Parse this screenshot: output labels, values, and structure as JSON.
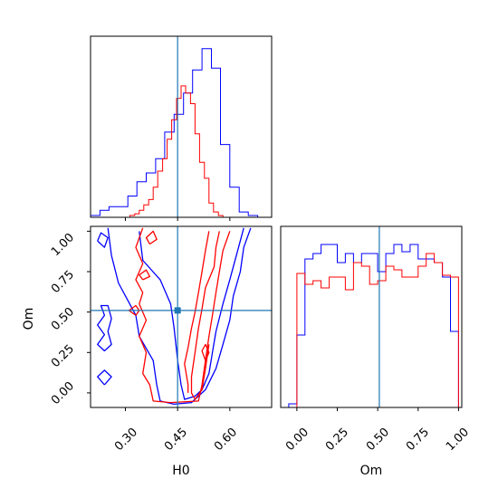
{
  "chart_data": {
    "type": "corner",
    "parameters": [
      "H0",
      "Om"
    ],
    "truth": {
      "H0": 0.45,
      "Om": 0.51,
      "color": "#1f77b4"
    },
    "series_colors": {
      "blue": "#0000ff",
      "red": "#ff0000"
    },
    "panels": [
      {
        "id": "h0-hist",
        "type": "histogram",
        "parameter": "H0",
        "xlim": [
          0.2,
          0.72
        ],
        "ylim": [
          0,
          1.02
        ],
        "series": [
          {
            "color_key": "blue",
            "bin_edges": [
              0.2,
              0.227,
              0.253,
              0.28,
              0.307,
              0.333,
              0.36,
              0.387,
              0.413,
              0.44,
              0.467,
              0.493,
              0.52,
              0.547,
              0.573,
              0.6,
              0.627,
              0.653,
              0.68,
              0.707
            ],
            "values": [
              0.01,
              0.04,
              0.06,
              0.06,
              0.12,
              0.2,
              0.25,
              0.33,
              0.48,
              0.58,
              0.7,
              0.83,
              0.95,
              0.84,
              0.41,
              0.17,
              0.03,
              0.01,
              0.0
            ]
          },
          {
            "color_key": "red",
            "bin_edges": [
              0.3,
              0.313,
              0.327,
              0.34,
              0.353,
              0.367,
              0.38,
              0.393,
              0.407,
              0.42,
              0.433,
              0.447,
              0.46,
              0.473,
              0.487,
              0.5,
              0.513,
              0.527,
              0.54,
              0.553,
              0.567,
              0.58,
              0.593
            ],
            "values": [
              0.0,
              0.01,
              0.02,
              0.04,
              0.07,
              0.1,
              0.17,
              0.26,
              0.33,
              0.44,
              0.55,
              0.67,
              0.74,
              0.7,
              0.64,
              0.47,
              0.31,
              0.22,
              0.08,
              0.03,
              0.01,
              0.0
            ]
          }
        ]
      },
      {
        "id": "om-vs-h0",
        "type": "contour",
        "x_param": "H0",
        "y_param": "Om",
        "xlim": [
          0.2,
          0.72
        ],
        "ylim": [
          -0.09,
          1.03
        ],
        "xticks": [
          0.3,
          0.45,
          0.6
        ],
        "xtick_labels": [
          "0.30",
          "0.45",
          "0.60"
        ],
        "yticks": [
          0.0,
          0.25,
          0.5,
          0.75,
          1.0
        ],
        "ytick_labels": [
          "0.00",
          "0.25",
          "0.50",
          "0.75",
          "1.00"
        ],
        "xlabel": "H0",
        "ylabel": "Om",
        "contours": [
          {
            "color_key": "blue",
            "points": [
              [
                0.66,
                1.02
              ],
              [
                0.64,
                0.9
              ],
              [
                0.63,
                0.75
              ],
              [
                0.61,
                0.6
              ],
              [
                0.6,
                0.45
              ],
              [
                0.58,
                0.3
              ],
              [
                0.56,
                0.15
              ],
              [
                0.53,
                0.02
              ],
              [
                0.49,
                -0.06
              ],
              [
                0.44,
                -0.07
              ],
              [
                0.4,
                -0.05
              ],
              [
                0.39,
                0.05
              ],
              [
                0.38,
                0.2
              ],
              [
                0.34,
                0.35
              ],
              [
                0.33,
                0.48
              ],
              [
                0.3,
                0.6
              ],
              [
                0.28,
                0.68
              ],
              [
                0.26,
                0.85
              ],
              [
                0.25,
                1.02
              ]
            ]
          },
          {
            "color_key": "blue",
            "points": [
              [
                0.64,
                1.02
              ],
              [
                0.62,
                0.86
              ],
              [
                0.6,
                0.7
              ],
              [
                0.58,
                0.55
              ],
              [
                0.56,
                0.38
              ],
              [
                0.55,
                0.25
              ],
              [
                0.54,
                0.12
              ],
              [
                0.52,
                0.02
              ],
              [
                0.5,
                -0.02
              ],
              [
                0.47,
                -0.04
              ],
              [
                0.46,
                0.05
              ],
              [
                0.45,
                0.2
              ],
              [
                0.44,
                0.4
              ],
              [
                0.43,
                0.55
              ],
              [
                0.4,
                0.7
              ],
              [
                0.35,
                0.82
              ],
              [
                0.34,
                1.0
              ]
            ]
          },
          {
            "color_key": "blue",
            "points": [
              [
                0.24,
                0.26
              ],
              [
                0.22,
                0.3
              ],
              [
                0.24,
                0.36
              ],
              [
                0.22,
                0.42
              ],
              [
                0.24,
                0.48
              ],
              [
                0.23,
                0.54
              ],
              [
                0.25,
                0.54
              ],
              [
                0.26,
                0.46
              ],
              [
                0.25,
                0.38
              ],
              [
                0.26,
                0.3
              ],
              [
                0.24,
                0.26
              ]
            ]
          },
          {
            "color_key": "blue",
            "points": [
              [
                0.22,
                0.94
              ],
              [
                0.24,
                0.9
              ],
              [
                0.25,
                0.96
              ],
              [
                0.23,
                0.99
              ],
              [
                0.22,
                0.94
              ]
            ]
          },
          {
            "color_key": "blue",
            "points": [
              [
                0.24,
                0.05
              ],
              [
                0.22,
                0.1
              ],
              [
                0.24,
                0.14
              ],
              [
                0.26,
                0.1
              ],
              [
                0.24,
                0.05
              ]
            ]
          },
          {
            "color_key": "red",
            "points": [
              [
                0.6,
                1.0
              ],
              [
                0.58,
                0.88
              ],
              [
                0.57,
                0.75
              ],
              [
                0.56,
                0.62
              ],
              [
                0.55,
                0.48
              ],
              [
                0.54,
                0.35
              ],
              [
                0.53,
                0.2
              ],
              [
                0.52,
                0.05
              ],
              [
                0.51,
                -0.05
              ],
              [
                0.43,
                -0.06
              ],
              [
                0.38,
                -0.05
              ],
              [
                0.37,
                0.05
              ],
              [
                0.35,
                0.12
              ],
              [
                0.36,
                0.25
              ],
              [
                0.34,
                0.35
              ],
              [
                0.36,
                0.45
              ],
              [
                0.34,
                0.55
              ],
              [
                0.35,
                0.62
              ],
              [
                0.33,
                0.7
              ],
              [
                0.35,
                0.8
              ],
              [
                0.33,
                0.9
              ],
              [
                0.35,
                1.02
              ]
            ]
          },
          {
            "color_key": "red",
            "points": [
              [
                0.57,
                1.0
              ],
              [
                0.56,
                0.9
              ],
              [
                0.555,
                0.78
              ],
              [
                0.53,
                0.65
              ],
              [
                0.52,
                0.52
              ],
              [
                0.51,
                0.4
              ],
              [
                0.5,
                0.25
              ],
              [
                0.49,
                0.1
              ],
              [
                0.49,
                0.0
              ],
              [
                0.5,
                -0.04
              ],
              [
                0.52,
                0.02
              ],
              [
                0.53,
                0.15
              ],
              [
                0.54,
                0.3
              ]
            ]
          },
          {
            "color_key": "red",
            "points": [
              [
                0.54,
                1.0
              ],
              [
                0.53,
                0.88
              ],
              [
                0.52,
                0.75
              ],
              [
                0.51,
                0.62
              ],
              [
                0.5,
                0.5
              ],
              [
                0.49,
                0.4
              ],
              [
                0.48,
                0.28
              ],
              [
                0.47,
                0.18
              ],
              [
                0.48,
                0.05
              ],
              [
                0.48,
                0.0
              ]
            ]
          },
          {
            "color_key": "red",
            "points": [
              [
                0.37,
                0.92
              ],
              [
                0.36,
                0.96
              ],
              [
                0.38,
                1.0
              ],
              [
                0.39,
                0.95
              ],
              [
                0.37,
                0.92
              ]
            ]
          },
          {
            "color_key": "red",
            "points": [
              [
                0.35,
                0.7
              ],
              [
                0.34,
                0.73
              ],
              [
                0.36,
                0.76
              ],
              [
                0.37,
                0.72
              ],
              [
                0.35,
                0.7
              ]
            ]
          },
          {
            "color_key": "red",
            "points": [
              [
                0.33,
                0.48
              ],
              [
                0.31,
                0.51
              ],
              [
                0.33,
                0.54
              ],
              [
                0.34,
                0.51
              ],
              [
                0.33,
                0.48
              ]
            ]
          },
          {
            "color_key": "red",
            "points": [
              [
                0.53,
                0.2
              ],
              [
                0.52,
                0.26
              ],
              [
                0.53,
                0.3
              ],
              [
                0.54,
                0.25
              ],
              [
                0.53,
                0.2
              ]
            ]
          }
        ]
      },
      {
        "id": "om-hist",
        "type": "histogram",
        "parameter": "Om",
        "xlim": [
          -0.1,
          1.02
        ],
        "ylim": [
          0,
          1.0
        ],
        "xticks": [
          0.0,
          0.25,
          0.5,
          0.75,
          1.0
        ],
        "xtick_labels": [
          "0.00",
          "0.25",
          "0.50",
          "0.75",
          "1.00"
        ],
        "xlabel": "Om",
        "series": [
          {
            "color_key": "blue",
            "bin_edges": [
              -0.05,
              0.0,
              0.05,
              0.1,
              0.15,
              0.2,
              0.25,
              0.3,
              0.35,
              0.4,
              0.45,
              0.5,
              0.55,
              0.6,
              0.65,
              0.7,
              0.75,
              0.8,
              0.85,
              0.9,
              0.95,
              1.0,
              1.02
            ],
            "values": [
              0.02,
              0.4,
              0.82,
              0.85,
              0.9,
              0.9,
              0.8,
              0.85,
              0.8,
              0.85,
              0.85,
              0.75,
              0.85,
              0.9,
              0.86,
              0.9,
              0.82,
              0.82,
              0.8,
              0.72,
              0.42,
              0.0
            ]
          },
          {
            "color_key": "red",
            "bin_edges": [
              0.0,
              0.05,
              0.1,
              0.15,
              0.2,
              0.25,
              0.3,
              0.35,
              0.4,
              0.45,
              0.5,
              0.55,
              0.6,
              0.65,
              0.7,
              0.75,
              0.8,
              0.85,
              0.9,
              0.95,
              1.0
            ],
            "values": [
              0.74,
              0.68,
              0.7,
              0.66,
              0.72,
              0.72,
              0.65,
              0.8,
              0.78,
              0.68,
              0.7,
              0.78,
              0.76,
              0.72,
              0.72,
              0.78,
              0.85,
              0.8,
              0.73,
              0.72
            ]
          }
        ]
      }
    ]
  }
}
